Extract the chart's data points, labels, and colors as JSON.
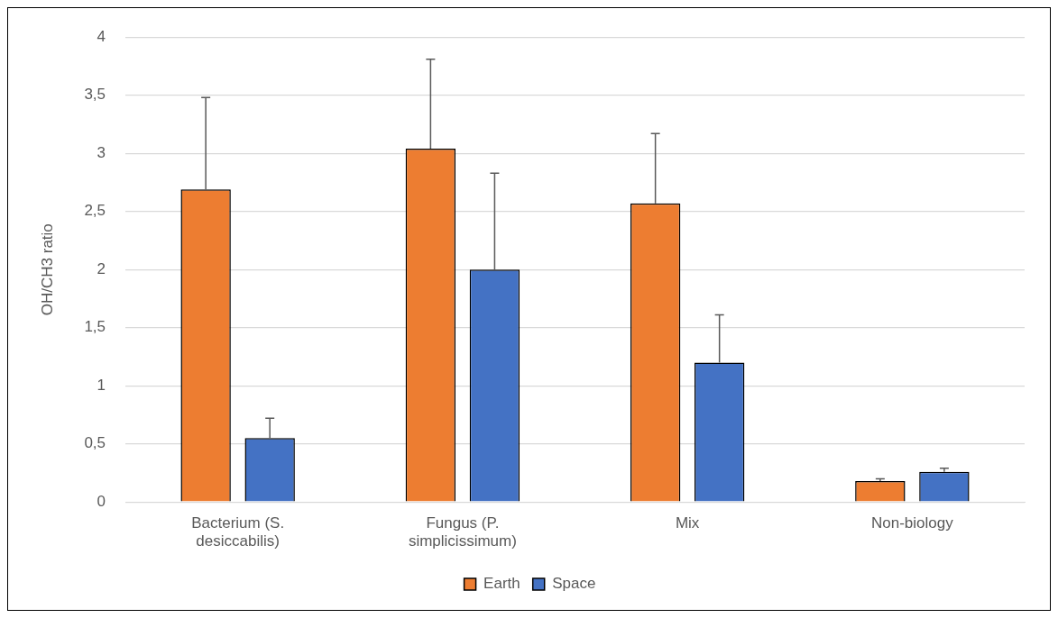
{
  "chart_data": {
    "type": "bar",
    "ylabel": "OH/CH3 ratio",
    "categories": [
      "Bacterium (S. desiccabilis)",
      "Fungus (P. simplicissimum)",
      "Mix",
      "Non-biology"
    ],
    "series": [
      {
        "name": "Earth",
        "color": "#ed7d31",
        "values": [
          2.69,
          3.04,
          2.57,
          0.18
        ],
        "errors": [
          [
            2.69,
            3.48
          ],
          [
            3.04,
            3.81
          ],
          [
            2.57,
            3.17
          ],
          [
            0.18,
            0.2
          ]
        ]
      },
      {
        "name": "Space",
        "color": "#4472c4",
        "values": [
          0.55,
          2.0,
          1.2,
          0.26
        ],
        "errors": [
          [
            0.55,
            0.72
          ],
          [
            2.0,
            2.83
          ],
          [
            1.2,
            1.61
          ],
          [
            0.26,
            0.29
          ]
        ]
      }
    ],
    "ylim": [
      0,
      4
    ],
    "yticks": [
      0,
      {
        "value": 0.5,
        "label": "0,5"
      },
      1,
      {
        "value": 1.5,
        "label": "1,5"
      },
      2,
      {
        "value": 2.5,
        "label": "2,5"
      },
      3,
      {
        "value": 3.5,
        "label": "3,5"
      },
      4
    ],
    "grid": "y",
    "legend": "bottom"
  }
}
